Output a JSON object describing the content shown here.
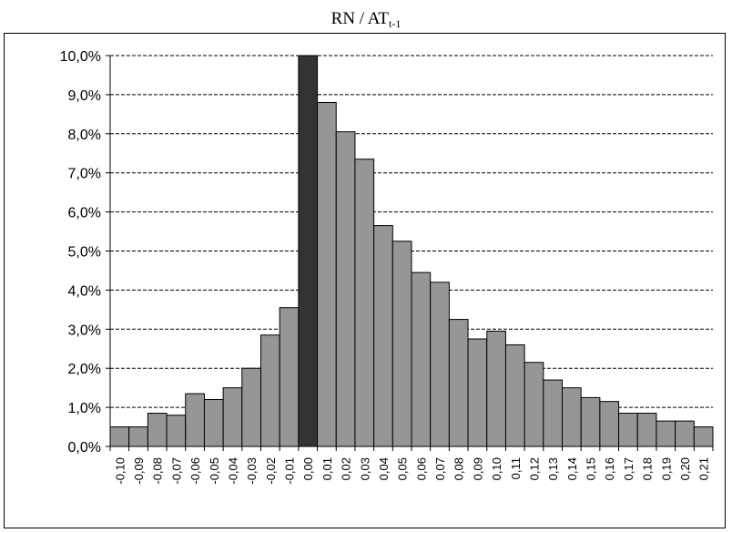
{
  "chart_data": {
    "type": "bar",
    "title": "RN / AT",
    "title_subscript": "t-1",
    "xlabel": "",
    "ylabel": "",
    "ylim": [
      0,
      10
    ],
    "y_ticks": [
      "0,0%",
      "1,0%",
      "2,0%",
      "3,0%",
      "4,0%",
      "5,0%",
      "6,0%",
      "7,0%",
      "8,0%",
      "9,0%",
      "10,0%"
    ],
    "grid": true,
    "categories": [
      "-0,10",
      "-0,09",
      "-0,08",
      "-0,07",
      "-0,06",
      "-0,05",
      "-0,04",
      "-0,03",
      "-0,02",
      "-0,01",
      "0,00",
      "0,01",
      "0,02",
      "0,03",
      "0,04",
      "0,05",
      "0,06",
      "0,07",
      "0,08",
      "0,09",
      "0,10",
      "0,11",
      "0,12",
      "0,13",
      "0,14",
      "0,15",
      "0,16",
      "0,17",
      "0,18",
      "0,19",
      "0,20",
      "0,21"
    ],
    "values": [
      0.5,
      0.5,
      0.85,
      0.8,
      1.35,
      1.2,
      1.5,
      2.0,
      2.85,
      3.55,
      10.0,
      8.8,
      8.05,
      7.35,
      5.65,
      5.25,
      4.45,
      4.2,
      3.25,
      2.75,
      2.95,
      2.6,
      2.15,
      1.7,
      1.5,
      1.25,
      1.15,
      0.85,
      0.85,
      0.65,
      0.65,
      0.5
    ],
    "highlight_category": "0,00",
    "colors": {
      "bar": "#969696",
      "highlight": "#333333",
      "grid": "#000000"
    }
  }
}
